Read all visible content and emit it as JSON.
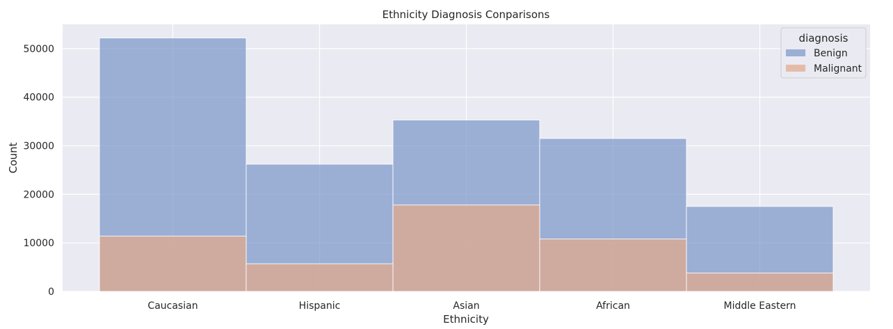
{
  "chart_data": {
    "type": "bar",
    "title": "Ethnicity Diagnosis Conparisons",
    "xlabel": "Ethnicity",
    "ylabel": "Count",
    "categories": [
      "Caucasian",
      "Hispanic",
      "Asian",
      "African",
      "Middle Eastern"
    ],
    "ylim": [
      0,
      55000
    ],
    "yticks": [
      0,
      10000,
      20000,
      30000,
      40000,
      50000
    ],
    "grid": true,
    "legend_placement": "top-right",
    "legend_title": "diagnosis",
    "series": [
      {
        "name": "Benign",
        "color": "#7d99c9",
        "values": [
          52200,
          26200,
          35300,
          31500,
          17500
        ]
      },
      {
        "name": "Malignant",
        "color": "#e3a98b",
        "values": [
          11400,
          5700,
          17800,
          10800,
          3800
        ]
      }
    ]
  }
}
